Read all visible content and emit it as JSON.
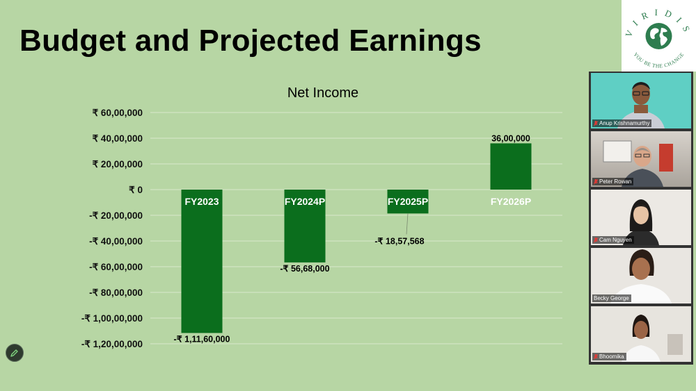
{
  "slide": {
    "title": "Budget and Projected Earnings"
  },
  "logo": {
    "brand": "VIRIDIS",
    "tagline": "YOU BE THE CHANGE",
    "icon": "globe-icon",
    "color": "#2e7d4f"
  },
  "chart_data": {
    "type": "bar",
    "title": "Net Income",
    "categories": [
      "FY2023",
      "FY2024P",
      "FY2025P",
      "FY2026P"
    ],
    "values": [
      -11160000,
      -5668000,
      -1857568,
      3600000
    ],
    "data_labels": [
      "-₹ 1,11,60,000",
      "-₹ 56,68,000",
      "-₹ 18,57,568",
      "36,00,000"
    ],
    "ylim": [
      -12000000,
      6000000
    ],
    "yticks": [
      6000000,
      4000000,
      2000000,
      0,
      -2000000,
      -4000000,
      -6000000,
      -8000000,
      -10000000,
      -12000000
    ],
    "ytick_labels": [
      "₹ 60,00,000",
      "₹ 40,00,000",
      "₹ 20,00,000",
      "₹ 0",
      "-₹ 20,00,000",
      "-₹ 40,00,000",
      "-₹ 60,00,000",
      "-₹ 80,00,000",
      "-₹ 1,00,00,000",
      "-₹ 1,20,00,000"
    ],
    "bar_color": "#0b6e1d",
    "grid": true,
    "legend": "none"
  },
  "participants": [
    {
      "name": "Anup Krishnamurthy",
      "mic_icon": "mic-muted-icon"
    },
    {
      "name": "Peter Rowan",
      "mic_icon": "mic-muted-icon"
    },
    {
      "name": "Cam Nguyen",
      "mic_icon": "mic-muted-icon"
    },
    {
      "name": "Becky George",
      "mic_icon": ""
    },
    {
      "name": "Bhoomika",
      "mic_icon": "mic-muted-icon"
    }
  ],
  "tools": {
    "edit_icon": "pencil-icon"
  }
}
